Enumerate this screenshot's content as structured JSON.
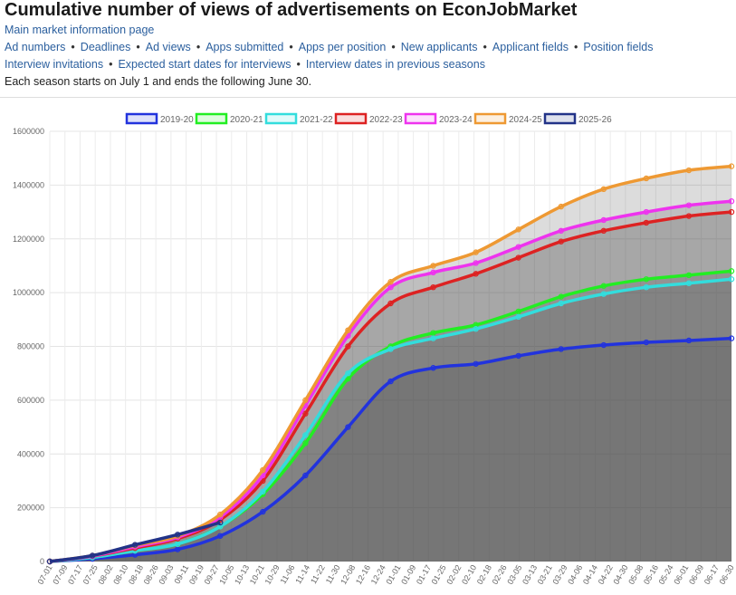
{
  "page": {
    "title": "Cumulative number of views of advertisements on EconJobMarket",
    "main_link": "Main market information page",
    "nav_row1": [
      "Ad numbers",
      "Deadlines",
      "Ad views",
      "Apps submitted",
      "Apps per position",
      "New applicants",
      "Applicant fields",
      "Position fields"
    ],
    "nav_row2": [
      "Interview invitations",
      "Expected start dates for interviews",
      "Interview dates in previous seasons"
    ],
    "note": "Each season starts on July 1 and ends the following June 30."
  },
  "colors": {
    "2019-20": "#2233dd",
    "2020-21": "#22ee22",
    "2021-22": "#33dddd",
    "2022-23": "#dd2222",
    "2023-24": "#ee33ee",
    "2024-25": "#ee9933",
    "2025-26": "#223388"
  },
  "chart_data": {
    "type": "line",
    "title": "Cumulative number of views of advertisements on EconJobMarket",
    "xlabel": "",
    "ylabel": "",
    "ylim": [
      0,
      1600000
    ],
    "yticks": [
      "0",
      "200000",
      "400000",
      "600000",
      "800000",
      "1000000",
      "1200000",
      "1400000",
      "1600000"
    ],
    "grid": true,
    "legend_position": "top",
    "x_tick_labels": [
      "07-01",
      "07-09",
      "07-17",
      "07-25",
      "08-02",
      "08-10",
      "08-18",
      "08-26",
      "09-03",
      "09-11",
      "09-19",
      "09-27",
      "10-05",
      "10-13",
      "10-21",
      "10-29",
      "11-06",
      "11-14",
      "11-22",
      "11-30",
      "12-08",
      "12-16",
      "12-24",
      "01-01",
      "01-09",
      "01-17",
      "01-25",
      "02-02",
      "02-10",
      "02-18",
      "02-26",
      "03-05",
      "03-13",
      "03-21",
      "03-29",
      "04-06",
      "04-14",
      "04-22",
      "04-30",
      "05-08",
      "05-16",
      "05-24",
      "06-01",
      "06-09",
      "06-17",
      "06-30"
    ],
    "x": [
      "07-01",
      "08-01",
      "09-01",
      "09-15",
      "10-01",
      "10-15",
      "11-01",
      "11-15",
      "12-01",
      "12-15",
      "01-01",
      "02-01",
      "03-01",
      "04-01",
      "05-01",
      "06-01",
      "06-30"
    ],
    "series": [
      {
        "name": "2019-20",
        "values": [
          0,
          10000,
          25000,
          45000,
          95000,
          185000,
          320000,
          500000,
          670000,
          720000,
          735000,
          765000,
          790000,
          805000,
          815000,
          822000,
          830000
        ]
      },
      {
        "name": "2020-21",
        "values": [
          0,
          15000,
          40000,
          65000,
          130000,
          250000,
          440000,
          680000,
          800000,
          850000,
          880000,
          930000,
          985000,
          1025000,
          1050000,
          1065000,
          1080000
        ]
      },
      {
        "name": "2021-22",
        "values": [
          0,
          15000,
          40000,
          65000,
          130000,
          260000,
          470000,
          700000,
          790000,
          830000,
          865000,
          910000,
          960000,
          995000,
          1020000,
          1035000,
          1050000
        ]
      },
      {
        "name": "2022-23",
        "values": [
          0,
          20000,
          50000,
          85000,
          155000,
          300000,
          550000,
          800000,
          960000,
          1020000,
          1070000,
          1130000,
          1190000,
          1230000,
          1260000,
          1285000,
          1300000
        ]
      },
      {
        "name": "2023-24",
        "values": [
          0,
          20000,
          55000,
          90000,
          165000,
          320000,
          580000,
          840000,
          1020000,
          1075000,
          1110000,
          1170000,
          1230000,
          1270000,
          1300000,
          1325000,
          1340000
        ]
      },
      {
        "name": "2024-25",
        "values": [
          0,
          22000,
          60000,
          95000,
          175000,
          340000,
          600000,
          860000,
          1040000,
          1100000,
          1150000,
          1235000,
          1320000,
          1385000,
          1425000,
          1455000,
          1470000
        ]
      },
      {
        "name": "2025-26",
        "values": [
          0,
          22000,
          62000,
          100000,
          145000,
          null,
          null,
          null,
          null,
          null,
          null,
          null,
          null,
          null,
          null,
          null,
          null
        ]
      }
    ]
  }
}
